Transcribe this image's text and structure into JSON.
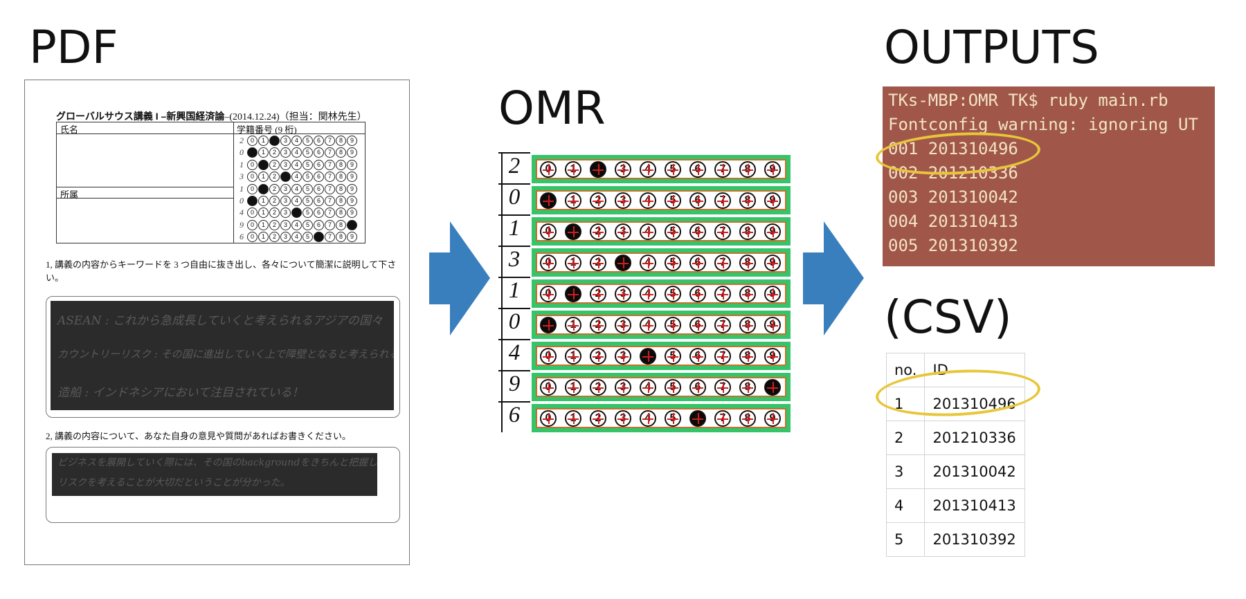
{
  "titles": {
    "pdf": "PDF",
    "omr": "OMR",
    "outputs": "OUTPUTS",
    "csv": "(CSV)"
  },
  "pdf": {
    "header_title": "グローバルサウス講義 I –新興国経済論",
    "header_rest": "–(2014.12.24)（担当：関林先生）",
    "name_label": "氏名",
    "student_id_label": "学籍番号 (9 桁)",
    "affiliation_label": "所属",
    "question1": "1, 講義の内容からキーワードを 3 つ自由に抜き出し、各々について簡潔に説明して下さい。",
    "question1_bold_1": "3 つ",
    "question1_bold_2": "簡潔に",
    "question2": "2, 講義の内容について、あなた自身の意見や質問があればお書きください。",
    "answer1_lines": [
      "ASEAN : これから急成長していくと考えられるアジアの国々",
      "カウントリーリスク : その国に進出していく上で障壁となると考えられる要因",
      "造船 : インドネシアにおいて注目されている！"
    ],
    "answer2_lines": [
      "ビジネスを展開していく際には、その国のbackgroundをきちんと把握し、",
      "リスクを考えることが大切だということが分かった。"
    ],
    "id_digits": [
      "2",
      "0",
      "1",
      "3",
      "1",
      "0",
      "4",
      "9",
      "6"
    ],
    "bubble_labels": [
      "0",
      "1",
      "2",
      "3",
      "4",
      "5",
      "6",
      "7",
      "8",
      "9"
    ]
  },
  "omr": {
    "digits": [
      "2",
      "0",
      "1",
      "3",
      "1",
      "0",
      "4",
      "9",
      "6"
    ],
    "bubble_labels": [
      "0",
      "1",
      "2",
      "3",
      "4",
      "5",
      "6",
      "7",
      "8",
      "9"
    ]
  },
  "terminal": {
    "lines": [
      "TKs-MBP:OMR TK$ ruby main.rb",
      "Fontconfig warning: ignoring UT",
      "001 201310496",
      "002 201210336",
      "003 201310042",
      "004 201310413",
      "005 201310392"
    ]
  },
  "csv": {
    "header": [
      "no.",
      "ID"
    ],
    "rows": [
      [
        "1",
        "201310496"
      ],
      [
        "2",
        "201210336"
      ],
      [
        "3",
        "201310042"
      ],
      [
        "4",
        "201310413"
      ],
      [
        "5",
        "201310392"
      ]
    ]
  },
  "colors": {
    "arrow": "#3a7fbd",
    "terminal_bg": "#a0574a",
    "terminal_text": "#f3e3c6",
    "highlight": "#e8c63a",
    "omr_band": "#35c46a",
    "omr_inner": "#c7702d",
    "omr_cross": "#d21c1c"
  }
}
